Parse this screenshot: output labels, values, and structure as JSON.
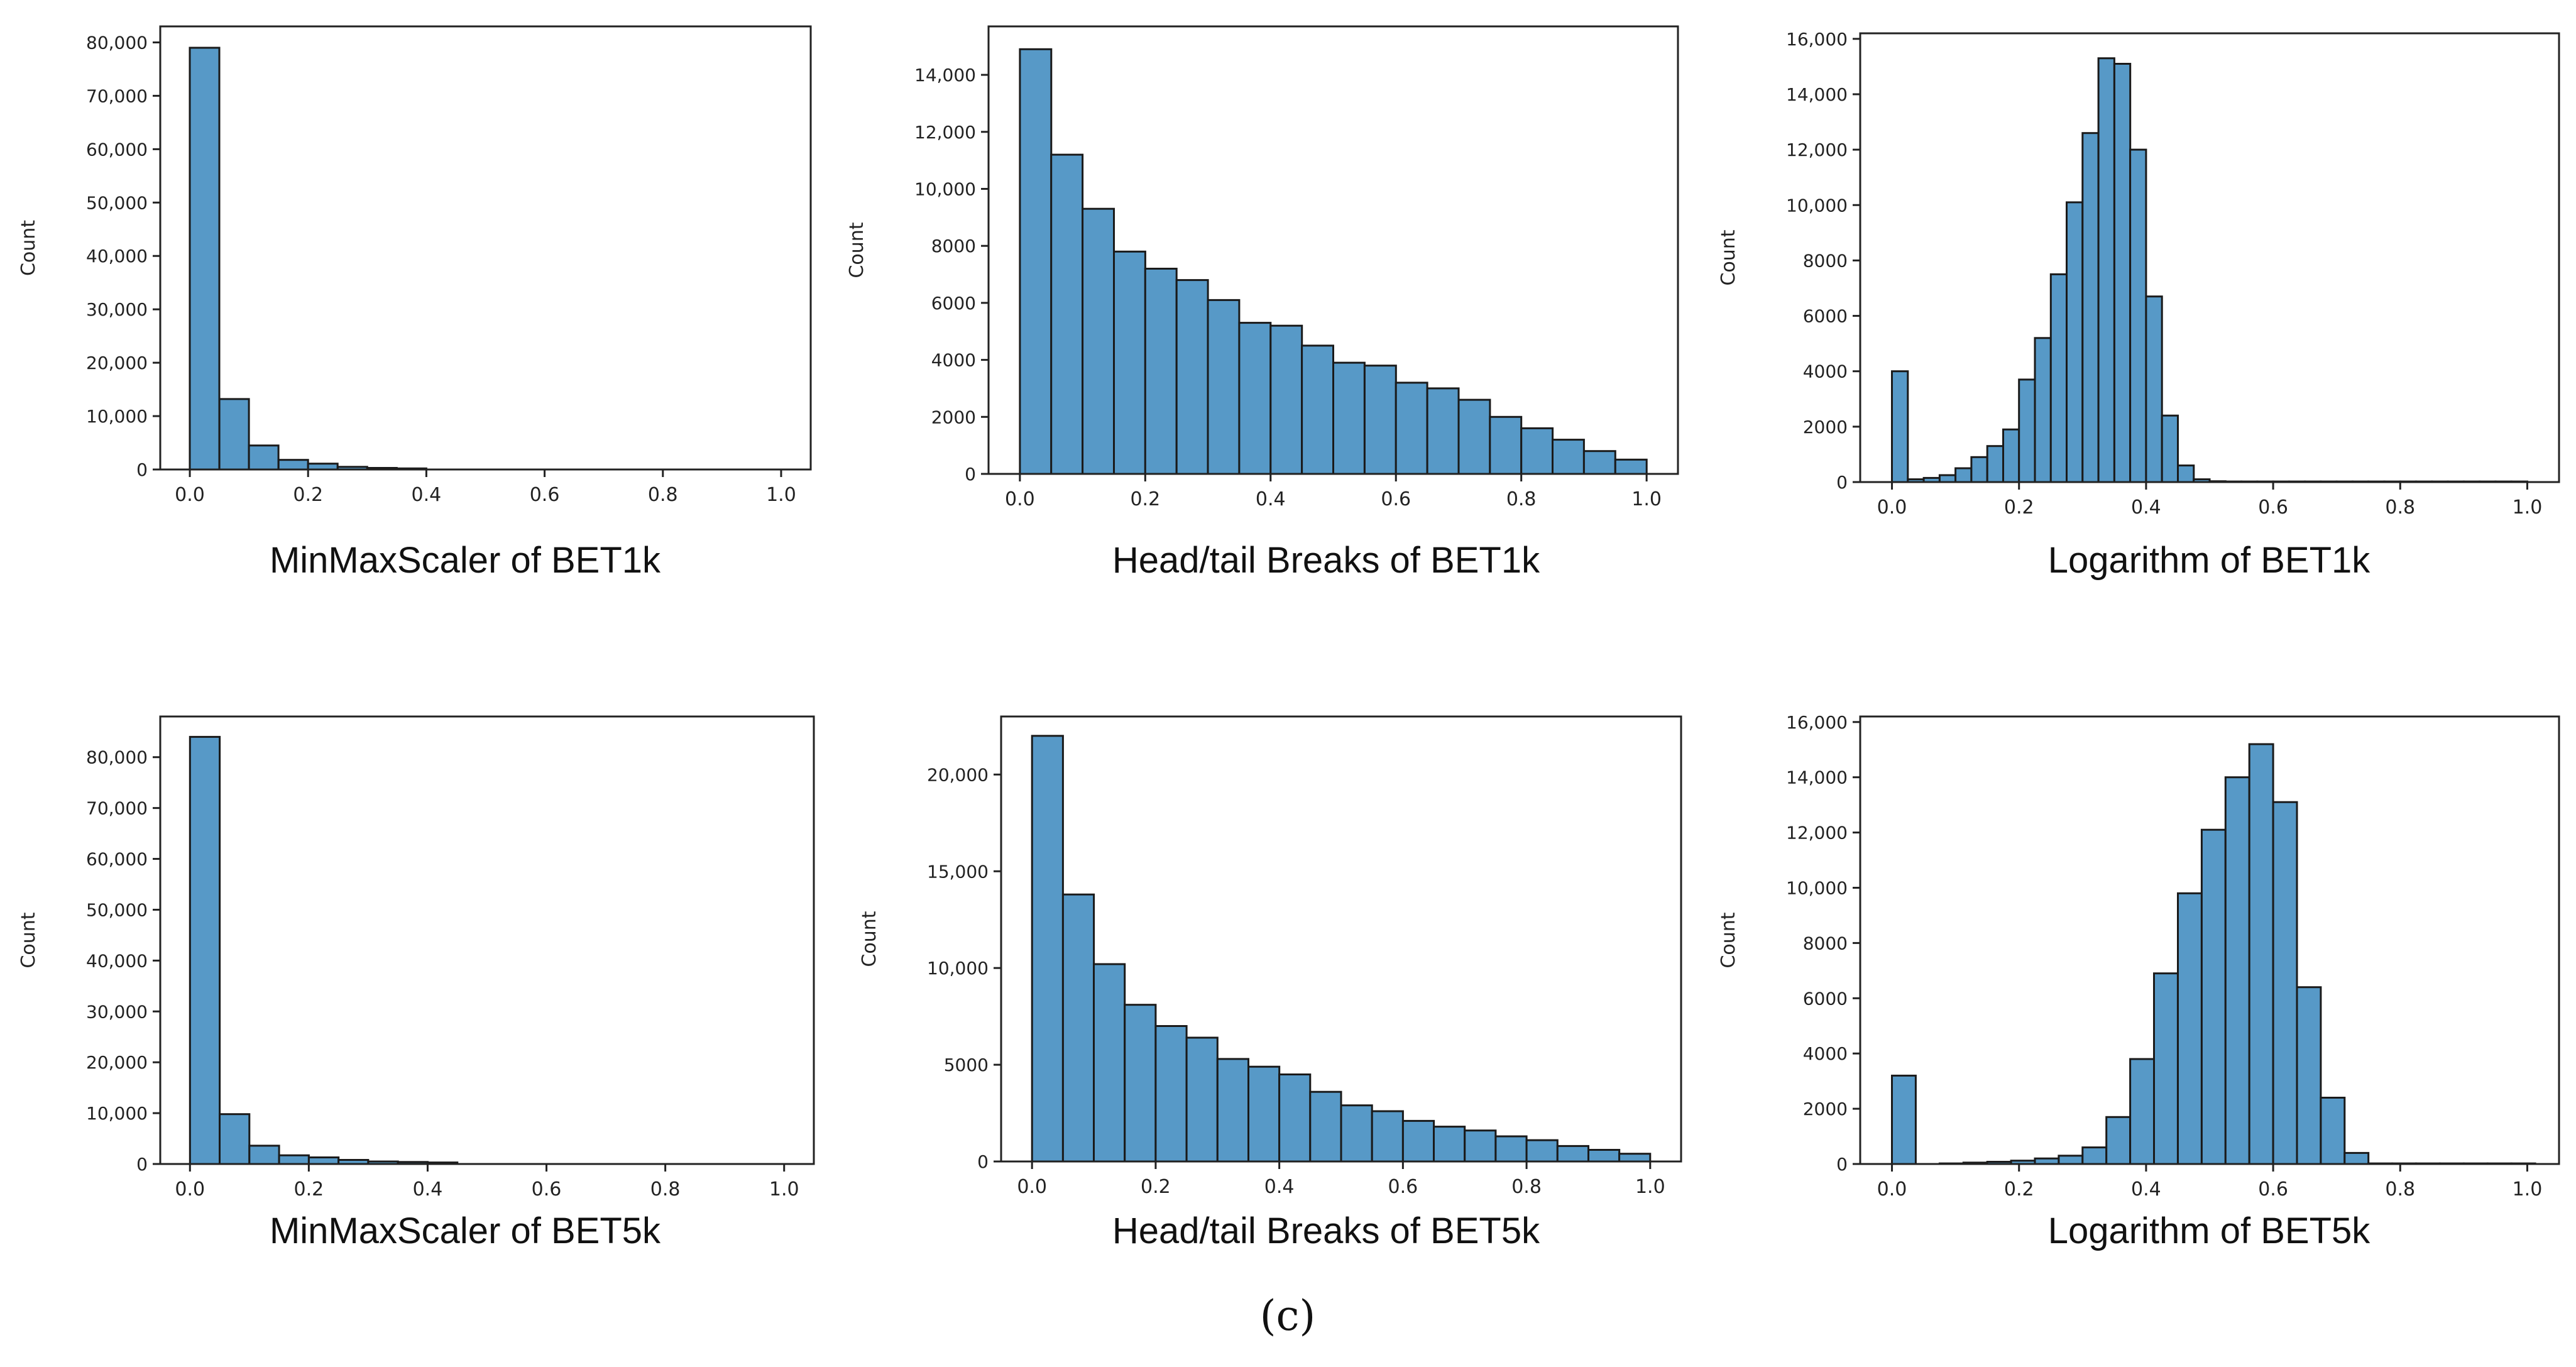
{
  "figure_label": "(c)",
  "colors": {
    "bar": "#5799c7",
    "bar_edge": "#1a1a1a",
    "axes": "#222222"
  },
  "chart_data": [
    {
      "type": "bar",
      "title": "MinMaxScaler of BET1k",
      "xlabel": "",
      "ylabel": "Count",
      "xlim": [
        -0.05,
        1.05
      ],
      "ylim": [
        0,
        83000
      ],
      "xticks": [
        0.0,
        0.2,
        0.4,
        0.6,
        0.8,
        1.0
      ],
      "xtick_labels": [
        "0.0",
        "0.2",
        "0.4",
        "0.6",
        "0.8",
        "1.0"
      ],
      "yticks": [
        0,
        10000,
        20000,
        30000,
        40000,
        50000,
        60000,
        70000,
        80000
      ],
      "ytick_labels": [
        "0",
        "10,000",
        "20,000",
        "30,000",
        "40,000",
        "50,000",
        "60,000",
        "70,000",
        "80,000"
      ],
      "bin_width": 0.05,
      "bin_starts": [
        0.0,
        0.05,
        0.1,
        0.15,
        0.2,
        0.25,
        0.3,
        0.35
      ],
      "values": [
        79000,
        13200,
        4500,
        1800,
        1100,
        500,
        300,
        200
      ]
    },
    {
      "type": "bar",
      "title": "Head/tail Breaks of BET1k",
      "xlabel": "",
      "ylabel": "Count",
      "xlim": [
        -0.05,
        1.05
      ],
      "ylim": [
        0,
        15700
      ],
      "xticks": [
        0.0,
        0.2,
        0.4,
        0.6,
        0.8,
        1.0
      ],
      "xtick_labels": [
        "0.0",
        "0.2",
        "0.4",
        "0.6",
        "0.8",
        "1.0"
      ],
      "yticks": [
        0,
        2000,
        4000,
        6000,
        8000,
        10000,
        12000,
        14000
      ],
      "ytick_labels": [
        "0",
        "2000",
        "4000",
        "6000",
        "8000",
        "10,000",
        "12,000",
        "14,000"
      ],
      "bin_width": 0.05,
      "bin_starts": [
        0.0,
        0.05,
        0.1,
        0.15,
        0.2,
        0.25,
        0.3,
        0.35,
        0.4,
        0.45,
        0.5,
        0.55,
        0.6,
        0.65,
        0.7,
        0.75,
        0.8,
        0.85,
        0.9,
        0.95
      ],
      "values": [
        14900,
        11200,
        9300,
        7800,
        7200,
        6800,
        6100,
        5300,
        5200,
        4500,
        3900,
        3800,
        3200,
        3000,
        2600,
        2000,
        1600,
        1200,
        800,
        500
      ]
    },
    {
      "type": "bar",
      "title": "Logarithm of BET1k",
      "xlabel": "",
      "ylabel": "Count",
      "xlim": [
        -0.05,
        1.05
      ],
      "ylim": [
        0,
        16200
      ],
      "xticks": [
        0.0,
        0.2,
        0.4,
        0.6,
        0.8,
        1.0
      ],
      "xtick_labels": [
        "0.0",
        "0.2",
        "0.4",
        "0.6",
        "0.8",
        "1.0"
      ],
      "yticks": [
        0,
        2000,
        4000,
        6000,
        8000,
        10000,
        12000,
        14000,
        16000
      ],
      "ytick_labels": [
        "0",
        "2000",
        "4000",
        "6000",
        "8000",
        "10,000",
        "12,000",
        "14,000",
        "16,000"
      ],
      "bin_width": 0.025,
      "bin_starts": [
        0.0,
        0.025,
        0.05,
        0.075,
        0.1,
        0.125,
        0.15,
        0.175,
        0.2,
        0.225,
        0.25,
        0.275,
        0.3,
        0.325,
        0.35,
        0.375,
        0.4,
        0.425,
        0.45,
        0.475,
        0.5,
        0.525,
        0.55,
        0.575,
        0.6,
        0.625,
        0.65,
        0.675,
        0.7,
        0.725,
        0.75,
        0.775,
        0.8,
        0.825,
        0.85,
        0.875,
        0.9,
        0.925,
        0.95,
        0.975
      ],
      "values": [
        4000,
        100,
        150,
        250,
        500,
        900,
        1300,
        1900,
        3700,
        5200,
        7500,
        10100,
        12600,
        15300,
        15100,
        12000,
        6700,
        2400,
        600,
        100,
        30,
        20,
        20,
        20,
        20,
        20,
        20,
        20,
        20,
        20,
        20,
        20,
        20,
        20,
        20,
        20,
        20,
        20,
        20,
        20
      ]
    },
    {
      "type": "bar",
      "title": "MinMaxScaler of BET5k",
      "xlabel": "",
      "ylabel": "Count",
      "xlim": [
        -0.05,
        1.05
      ],
      "ylim": [
        0,
        88000
      ],
      "xticks": [
        0.0,
        0.2,
        0.4,
        0.6,
        0.8,
        1.0
      ],
      "xtick_labels": [
        "0.0",
        "0.2",
        "0.4",
        "0.6",
        "0.8",
        "1.0"
      ],
      "yticks": [
        0,
        10000,
        20000,
        30000,
        40000,
        50000,
        60000,
        70000,
        80000
      ],
      "ytick_labels": [
        "0",
        "10,000",
        "20,000",
        "30,000",
        "40,000",
        "50,000",
        "60,000",
        "70,000",
        "80,000"
      ],
      "bin_width": 0.05,
      "bin_starts": [
        0.0,
        0.05,
        0.1,
        0.15,
        0.2,
        0.25,
        0.3,
        0.35,
        0.4
      ],
      "values": [
        84000,
        9800,
        3600,
        1700,
        1300,
        800,
        500,
        400,
        300
      ]
    },
    {
      "type": "bar",
      "title": "Head/tail Breaks of BET5k",
      "xlabel": "",
      "ylabel": "Count",
      "xlim": [
        -0.05,
        1.05
      ],
      "ylim": [
        0,
        23000
      ],
      "xticks": [
        0.0,
        0.2,
        0.4,
        0.6,
        0.8,
        1.0
      ],
      "xtick_labels": [
        "0.0",
        "0.2",
        "0.4",
        "0.6",
        "0.8",
        "1.0"
      ],
      "yticks": [
        0,
        5000,
        10000,
        15000,
        20000
      ],
      "ytick_labels": [
        "0",
        "5000",
        "10,000",
        "15,000",
        "20,000"
      ],
      "bin_width": 0.05,
      "bin_starts": [
        0.0,
        0.05,
        0.1,
        0.15,
        0.2,
        0.25,
        0.3,
        0.35,
        0.4,
        0.45,
        0.5,
        0.55,
        0.6,
        0.65,
        0.7,
        0.75,
        0.8,
        0.85,
        0.9,
        0.95
      ],
      "values": [
        22000,
        13800,
        10200,
        8100,
        7000,
        6400,
        5300,
        4900,
        4500,
        3600,
        2900,
        2600,
        2100,
        1800,
        1600,
        1300,
        1100,
        800,
        600,
        400
      ]
    },
    {
      "type": "bar",
      "title": "Logarithm of BET5k",
      "xlabel": "",
      "ylabel": "Count",
      "xlim": [
        -0.05,
        1.05
      ],
      "ylim": [
        0,
        16200
      ],
      "xticks": [
        0.0,
        0.2,
        0.4,
        0.6,
        0.8,
        1.0
      ],
      "xtick_labels": [
        "0.0",
        "0.2",
        "0.4",
        "0.6",
        "0.8",
        "1.0"
      ],
      "yticks": [
        0,
        2000,
        4000,
        6000,
        8000,
        10000,
        12000,
        14000,
        16000
      ],
      "ytick_labels": [
        "0",
        "2000",
        "4000",
        "6000",
        "8000",
        "10,000",
        "12,000",
        "14,000",
        "16,000"
      ],
      "bin_width": 0.0375,
      "bin_starts": [
        0.0,
        0.0375,
        0.075,
        0.1125,
        0.15,
        0.1875,
        0.225,
        0.2625,
        0.3,
        0.3375,
        0.375,
        0.4125,
        0.45,
        0.4875,
        0.525,
        0.5625,
        0.6,
        0.6375,
        0.675,
        0.7125,
        0.75,
        0.7875,
        0.825,
        0.8625,
        0.9,
        0.9375,
        0.975
      ],
      "values": [
        3200,
        0,
        20,
        50,
        80,
        120,
        200,
        300,
        600,
        1700,
        3800,
        6900,
        9800,
        12100,
        14000,
        15200,
        13100,
        6400,
        2400,
        400,
        20,
        20,
        20,
        20,
        20,
        20,
        20
      ]
    }
  ]
}
